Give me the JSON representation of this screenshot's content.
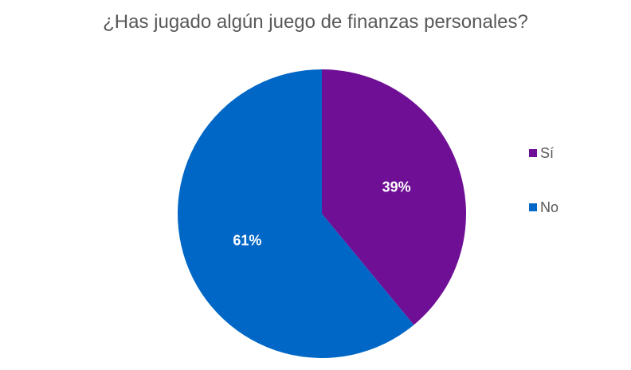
{
  "chart_data": {
    "type": "pie",
    "title": "¿Has jugado algún juego de finanzas personales?",
    "slices": [
      {
        "label": "Sí",
        "value": 39,
        "display": "39%",
        "color": "#6f0f96"
      },
      {
        "label": "No",
        "value": 61,
        "display": "61%",
        "color": "#0067c6"
      }
    ],
    "legend_position": "right",
    "label_color": "#ffffff"
  }
}
